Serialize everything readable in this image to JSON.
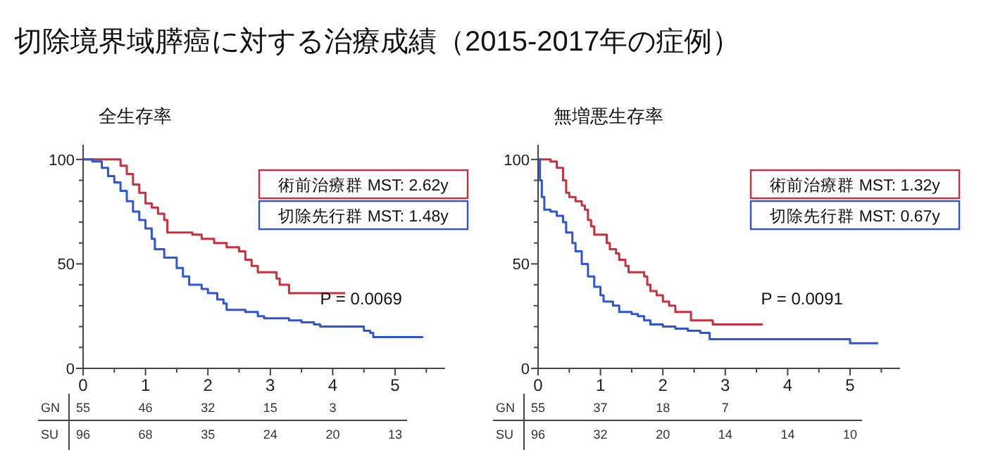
{
  "chart_data": [
    {
      "type": "step",
      "title": "切除境界域膵癌に対する治療成績（2015-2017年の症例）",
      "subtitle": "全生存率",
      "xlim": [
        0,
        5.8
      ],
      "ylim": [
        0,
        107
      ],
      "xticks": [
        0,
        {
          "value": 0.5,
          "label": null
        },
        1,
        {
          "value": 1.5,
          "label": null
        },
        2,
        {
          "value": 2.5,
          "label": null
        },
        3,
        {
          "value": 3.5,
          "label": null
        },
        4,
        {
          "value": 4.5,
          "label": null
        },
        5,
        {
          "value": 5.5,
          "label": null
        }
      ],
      "yticks": [
        0,
        {
          "value": 10,
          "label": null
        },
        {
          "value": 20,
          "label": null
        },
        {
          "value": 30,
          "label": null
        },
        {
          "value": 40,
          "label": null
        },
        50,
        {
          "value": 60,
          "label": null
        },
        {
          "value": 70,
          "label": null
        },
        {
          "value": 80,
          "label": null
        },
        {
          "value": 90,
          "label": null
        },
        100
      ],
      "legend": "top right",
      "annotations": [
        "P = 0.0069"
      ],
      "series": [
        {
          "name": "術前治療群 MST: 2.62y",
          "color": "#c8303f",
          "x": [
            0,
            0.53,
            0.6,
            0.7,
            0.8,
            0.9,
            1.0,
            1.1,
            1.2,
            1.3,
            1.35,
            1.75,
            1.9,
            2.1,
            2.3,
            2.5,
            2.6,
            2.7,
            2.8,
            3.1,
            3.15,
            3.3,
            4.2
          ],
          "values": [
            100,
            100,
            97,
            93,
            88,
            84,
            79,
            77,
            74,
            71,
            65,
            64,
            62,
            60,
            58,
            56,
            52,
            49,
            46,
            43,
            40,
            36,
            36
          ]
        },
        {
          "name": "切除先行群 MST: 1.48y",
          "color": "#2f55d4",
          "x": [
            0,
            0.15,
            0.3,
            0.4,
            0.5,
            0.6,
            0.7,
            0.8,
            0.9,
            1.0,
            1.1,
            1.15,
            1.3,
            1.5,
            1.6,
            1.7,
            1.9,
            2.0,
            2.15,
            2.25,
            2.3,
            2.6,
            2.8,
            2.9,
            3.3,
            3.5,
            3.7,
            3.8,
            4.4,
            4.5,
            4.6,
            4.65,
            5.45
          ],
          "values": [
            100,
            99,
            96,
            92,
            89,
            85,
            80,
            75,
            71,
            67,
            62,
            57,
            53,
            48,
            44,
            40,
            38,
            36,
            33,
            31,
            28,
            27,
            25,
            24,
            23,
            22,
            21,
            20,
            20,
            18,
            17,
            15,
            15
          ]
        }
      ]
    },
    {
      "type": "heatmap",
      "categories": [
        null,
        null,
        null,
        null,
        null,
        null
      ],
      "y_categories": [
        "GN",
        "SU"
      ],
      "data_labels": true,
      "cells": [
        [
          55,
          46,
          32,
          15,
          3,
          null
        ],
        [
          96,
          68,
          35,
          24,
          20,
          13
        ]
      ]
    },
    {
      "type": "step",
      "subtitle": "無増悪生存率",
      "xlim": [
        0,
        5.8
      ],
      "ylim": [
        0,
        107
      ],
      "xticks": [
        0,
        {
          "value": 0.5,
          "label": null
        },
        1,
        {
          "value": 1.5,
          "label": null
        },
        2,
        {
          "value": 2.5,
          "label": null
        },
        3,
        {
          "value": 3.5,
          "label": null
        },
        4,
        {
          "value": 4.5,
          "label": null
        },
        5,
        {
          "value": 5.5,
          "label": null
        }
      ],
      "yticks": [
        0,
        {
          "value": 10,
          "label": null
        },
        {
          "value": 20,
          "label": null
        },
        {
          "value": 30,
          "label": null
        },
        {
          "value": 40,
          "label": null
        },
        50,
        {
          "value": 60,
          "label": null
        },
        {
          "value": 70,
          "label": null
        },
        {
          "value": 80,
          "label": null
        },
        {
          "value": 90,
          "label": null
        },
        100
      ],
      "legend": "top right",
      "annotations": [
        "P = 0.0091"
      ],
      "series": [
        {
          "name": "術前治療群 MST: 1.32y",
          "color": "#c8303f",
          "x": [
            0,
            0.2,
            0.3,
            0.4,
            0.45,
            0.5,
            0.6,
            0.7,
            0.75,
            0.8,
            0.85,
            0.9,
            1.05,
            1.1,
            1.15,
            1.25,
            1.3,
            1.4,
            1.45,
            1.7,
            1.75,
            1.8,
            1.9,
            2.0,
            2.1,
            2.2,
            2.4,
            2.45,
            2.75,
            2.8,
            3.6
          ],
          "values": [
            100,
            99,
            96,
            90,
            84,
            82,
            80,
            78,
            76,
            71,
            68,
            64,
            64,
            60,
            57,
            55,
            52,
            49,
            46,
            44,
            40,
            37,
            35,
            32,
            30,
            27,
            27,
            23,
            23,
            21,
            21
          ]
        },
        {
          "name": "切除先行群 MST: 0.67y",
          "color": "#2f55d4",
          "x": [
            0,
            0.03,
            0.06,
            0.1,
            0.2,
            0.3,
            0.4,
            0.45,
            0.55,
            0.6,
            0.7,
            0.8,
            0.9,
            1.0,
            1.05,
            1.2,
            1.3,
            1.5,
            1.6,
            1.7,
            1.8,
            2.0,
            2.2,
            2.4,
            2.6,
            2.75,
            4.95,
            5.0,
            5.45
          ],
          "values": [
            100,
            90,
            82,
            76,
            75,
            73,
            70,
            65,
            60,
            56,
            50,
            44,
            39,
            35,
            32,
            30,
            27,
            26,
            25,
            23,
            21,
            20,
            19,
            18,
            17,
            14,
            14,
            12,
            12
          ]
        }
      ]
    },
    {
      "type": "heatmap",
      "categories": [
        null,
        null,
        null,
        null,
        null,
        null
      ],
      "y_categories": [
        "GN",
        "SU"
      ],
      "data_labels": true,
      "cells": [
        [
          55,
          37,
          18,
          7,
          null,
          null
        ],
        [
          96,
          32,
          20,
          14,
          14,
          10
        ]
      ]
    }
  ]
}
